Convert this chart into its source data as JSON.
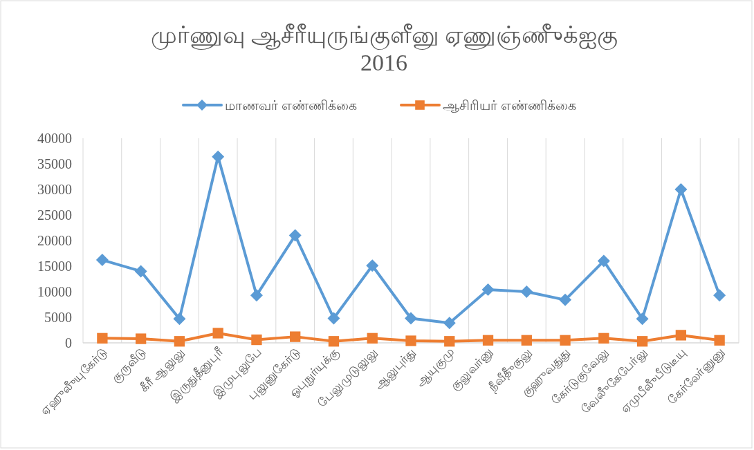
{
  "chart_data": {
    "type": "line",
    "title": "முர்ணுவு ஆசீரீயுருங்குளீனு ஏணுஞ்ணுீக்ஐகு 2016",
    "categories": [
      "ஏஹுலுீயுகேர்டு",
      "குருவீடு",
      "கீரீ ஆலுலு",
      "இருதுதீனுபுரீ",
      "இமுபுலுபே",
      "புலுனுகேர்டு",
      "ஓபுநுர்யுக்கு",
      "பேலுமுடுலுலு",
      "ஆலுபுர்து",
      "ஆயுகுமு",
      "குலுவர்னு",
      "நீவீதுீகுலு",
      "குஹுவதுது",
      "கேர்டுகுவேலு",
      "வேலுீகேபேர்லு",
      "ஏமுபீலுீபீடுடீயு",
      "கேர்லேர்னுனு"
    ],
    "series": [
      {
        "name": "மாணவர் எண்ணிக்கை",
        "color": "#5b9bd5",
        "marker": "diamond",
        "values": [
          16200,
          14000,
          4700,
          36400,
          9300,
          21000,
          4800,
          15100,
          4800,
          3900,
          10400,
          10000,
          8400,
          16000,
          4700,
          30000,
          9300
        ]
      },
      {
        "name": "ஆசிரியர் எண்ணிக்கை",
        "color": "#ed7d31",
        "marker": "square",
        "values": [
          900,
          800,
          300,
          1900,
          600,
          1200,
          300,
          900,
          400,
          300,
          500,
          500,
          500,
          900,
          300,
          1500,
          500
        ]
      }
    ],
    "ylim": [
      0,
      40000
    ],
    "yticks": [
      0,
      5000,
      10000,
      15000,
      20000,
      25000,
      30000,
      35000,
      40000
    ],
    "grid": "x",
    "legend": "top"
  }
}
